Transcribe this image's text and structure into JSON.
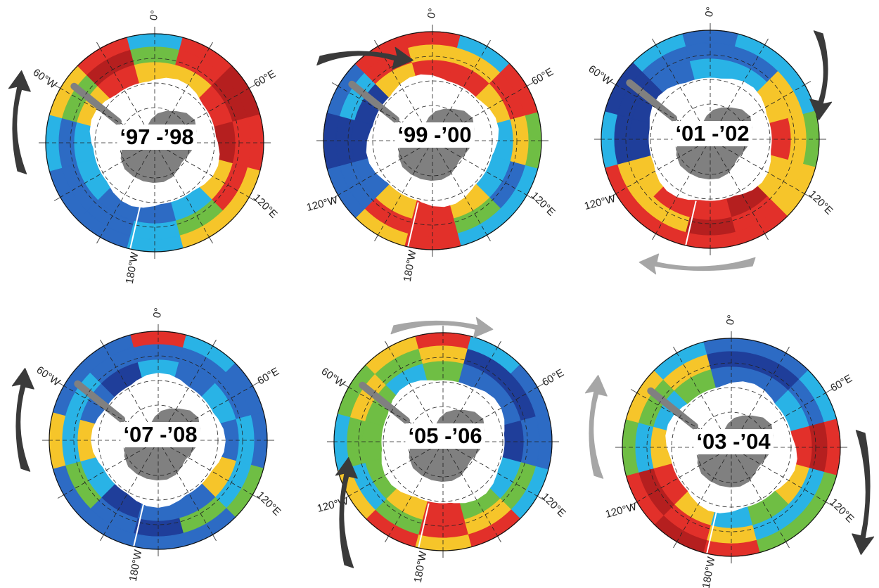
{
  "figure": {
    "panels": [
      {
        "id": "p97",
        "period": "‘97 -’98",
        "labels": {
          "zero": "0°",
          "w60": "60°W",
          "e60": "60°E",
          "w120": "",
          "e120": "120°E",
          "w180": "180°W"
        },
        "arrows": [
          {
            "shade": "dark",
            "side": "left",
            "direction": "up"
          }
        ]
      },
      {
        "id": "p99",
        "period": "‘99 -’00",
        "labels": {
          "zero": "0°",
          "w60": "",
          "e60": "60°E",
          "w120": "120°W",
          "e120": "120°E",
          "w180": "180°W"
        },
        "arrows": [
          {
            "shade": "dark",
            "side": "top-left",
            "direction": "right"
          }
        ]
      },
      {
        "id": "p01",
        "period": "‘01 -’02",
        "labels": {
          "zero": "0°",
          "w60": "60°W",
          "e60": "",
          "w120": "120°W",
          "e120": "120°E",
          "w180": ""
        },
        "arrows": [
          {
            "shade": "dark",
            "side": "top-right",
            "direction": "down"
          },
          {
            "shade": "light",
            "side": "bottom",
            "direction": "left"
          }
        ]
      },
      {
        "id": "p07",
        "period": "‘07 -’08",
        "labels": {
          "zero": "0°",
          "w60": "60°W",
          "e60": "60°E",
          "w120": "",
          "e120": "120°E",
          "w180": "180°W"
        },
        "arrows": [
          {
            "shade": "dark",
            "side": "left",
            "direction": "up"
          }
        ]
      },
      {
        "id": "p05",
        "period": "‘05 -’06",
        "labels": {
          "zero": "",
          "w60": "60°W",
          "e60": "60°E",
          "w120": "120°W",
          "e120": "120°E",
          "w180": "180°W"
        },
        "arrows": [
          {
            "shade": "light",
            "side": "top",
            "direction": "right"
          },
          {
            "shade": "dark",
            "side": "bottom-left",
            "direction": "up"
          }
        ]
      },
      {
        "id": "p03",
        "period": "‘03 -’04",
        "labels": {
          "zero": "0°",
          "w60": "",
          "e60": "60°E",
          "w120": "120°W",
          "e120": "120°E",
          "w180": "180°W"
        },
        "arrows": [
          {
            "shade": "light",
            "side": "left",
            "direction": "up"
          },
          {
            "shade": "dark",
            "side": "right",
            "direction": "down"
          }
        ]
      }
    ],
    "colors": {
      "blue_dark": "#1f3e9a",
      "blue": "#2d6bc4",
      "cyan": "#29b3e6",
      "green": "#6fbe44",
      "yellow": "#f6c52a",
      "red": "#e2302a",
      "dark_red": "#b51f1f",
      "land": "#808080",
      "arrow_dark": "#3a3a3a",
      "arrow_light": "#a6a6a6"
    }
  }
}
